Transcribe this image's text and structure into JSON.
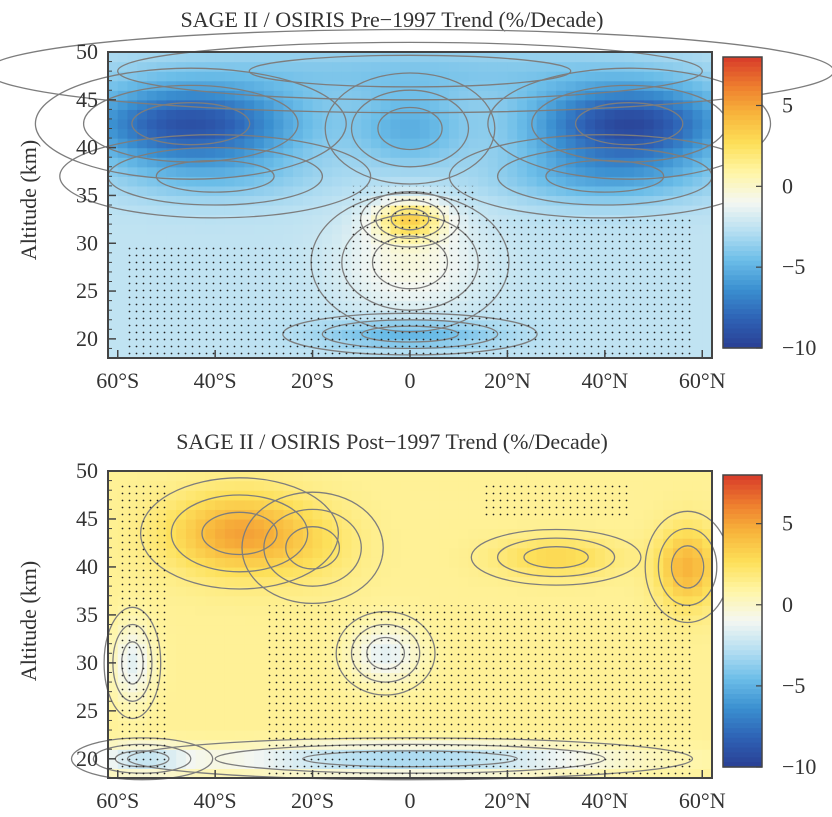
{
  "colors": {
    "scale": [
      "#2a3f94",
      "#2e62b5",
      "#3a8fd0",
      "#6bbde8",
      "#b6dff2",
      "#f4f7f2",
      "#fff6a8",
      "#fde05a",
      "#f8b73c",
      "#ee7d2e",
      "#d73a2a"
    ],
    "contour_line": "#7d7d7d",
    "stipple": "#222222"
  },
  "chart_data": [
    {
      "type": "heatmap",
      "title": "SAGE II / OSIRIS Pre−1997 Trend (%/Decade)",
      "xlabel": "",
      "ylabel": "Altitude (km)",
      "xlim": [
        -62,
        62
      ],
      "ylim": [
        18,
        50
      ],
      "x_ticks": [
        {
          "value": -60,
          "label": "60°S"
        },
        {
          "value": -40,
          "label": "40°S"
        },
        {
          "value": -20,
          "label": "20°S"
        },
        {
          "value": 0,
          "label": "0"
        },
        {
          "value": 20,
          "label": "20°N"
        },
        {
          "value": 40,
          "label": "40°N"
        },
        {
          "value": 60,
          "label": "60°N"
        }
      ],
      "y_ticks": [
        {
          "value": 20,
          "label": "20"
        },
        {
          "value": 25,
          "label": "25"
        },
        {
          "value": 30,
          "label": "30"
        },
        {
          "value": 35,
          "label": "35"
        },
        {
          "value": 40,
          "label": "40"
        },
        {
          "value": 45,
          "label": "45"
        },
        {
          "value": 50,
          "label": "50"
        }
      ],
      "colorbar": {
        "range": [
          -10,
          8
        ],
        "ticks": [
          {
            "value": 5,
            "label": "5"
          },
          {
            "value": 0,
            "label": "0"
          },
          {
            "value": -5,
            "label": "−5"
          },
          {
            "value": -10,
            "label": "−10"
          }
        ]
      },
      "features": [
        {
          "lat": -45,
          "alt": 42.5,
          "value": -9,
          "wlat": 22,
          "walt": 4
        },
        {
          "lat": 45,
          "alt": 42.5,
          "value": -9.5,
          "wlat": 20,
          "walt": 4
        },
        {
          "lat": 0,
          "alt": 42,
          "value": -5,
          "wlat": 12,
          "walt": 4
        },
        {
          "lat": 0,
          "alt": 48,
          "value": -4,
          "wlat": 60,
          "walt": 3
        },
        {
          "lat": -40,
          "alt": 37,
          "value": -4,
          "wlat": 22,
          "walt": 3
        },
        {
          "lat": 40,
          "alt": 37,
          "value": -5,
          "wlat": 22,
          "walt": 3
        },
        {
          "lat": 0,
          "alt": 32.5,
          "value": 2.5,
          "wlat": 7,
          "walt": 2
        },
        {
          "lat": 0,
          "alt": 28,
          "value": -0.5,
          "wlat": 14,
          "walt": 5
        },
        {
          "lat": 0,
          "alt": 20.5,
          "value": -5,
          "wlat": 18,
          "walt": 1.5
        }
      ],
      "stipple_regions": [
        {
          "lat": [
            -12,
            14
          ],
          "alt": [
            18,
            36
          ]
        },
        {
          "lat": [
            14,
            58
          ],
          "alt": [
            18,
            33
          ]
        },
        {
          "lat": [
            -58,
            -12
          ],
          "alt": [
            18,
            30
          ]
        }
      ]
    },
    {
      "type": "heatmap",
      "title": "SAGE II / OSIRIS Post−1997 Trend (%/Decade)",
      "xlabel": "",
      "ylabel": "Altitude (km)",
      "xlim": [
        -62,
        62
      ],
      "ylim": [
        18,
        50
      ],
      "x_ticks": [
        {
          "value": -60,
          "label": "60°S"
        },
        {
          "value": -40,
          "label": "40°S"
        },
        {
          "value": -20,
          "label": "20°S"
        },
        {
          "value": 0,
          "label": "0"
        },
        {
          "value": 20,
          "label": "20°N"
        },
        {
          "value": 40,
          "label": "40°N"
        },
        {
          "value": 60,
          "label": "60°N"
        }
      ],
      "y_ticks": [
        {
          "value": 20,
          "label": "20"
        },
        {
          "value": 25,
          "label": "25"
        },
        {
          "value": 30,
          "label": "30"
        },
        {
          "value": 35,
          "label": "35"
        },
        {
          "value": 40,
          "label": "40"
        },
        {
          "value": 45,
          "label": "45"
        },
        {
          "value": 50,
          "label": "50"
        }
      ],
      "colorbar": {
        "range": [
          -10,
          8
        ],
        "ticks": [
          {
            "value": 5,
            "label": "5"
          },
          {
            "value": 0,
            "label": "0"
          },
          {
            "value": -5,
            "label": "−5"
          },
          {
            "value": -10,
            "label": "−10"
          }
        ]
      },
      "features": [
        {
          "lat": -35,
          "alt": 43.5,
          "value": 5,
          "wlat": 14,
          "walt": 4
        },
        {
          "lat": -20,
          "alt": 42,
          "value": 2,
          "wlat": 10,
          "walt": 4
        },
        {
          "lat": 30,
          "alt": 41,
          "value": 3,
          "wlat": 12,
          "walt": 2
        },
        {
          "lat": 57,
          "alt": 40,
          "value": 4.5,
          "wlat": 6,
          "walt": 4
        },
        {
          "lat": -57,
          "alt": 30,
          "value": -1.5,
          "wlat": 4,
          "walt": 4
        },
        {
          "lat": -5,
          "alt": 31,
          "value": -1.5,
          "wlat": 7,
          "walt": 3
        },
        {
          "lat": 0,
          "alt": 20,
          "value": -3.5,
          "wlat": 40,
          "walt": 1.5
        },
        {
          "lat": -55,
          "alt": 20,
          "value": -2,
          "wlat": 10,
          "walt": 1.5
        }
      ],
      "stipple_regions": [
        {
          "lat": [
            -30,
            58
          ],
          "alt": [
            18,
            36
          ]
        },
        {
          "lat": [
            -60,
            -50
          ],
          "alt": [
            18,
            49
          ]
        },
        {
          "lat": [
            15,
            45
          ],
          "alt": [
            45,
            49
          ]
        }
      ]
    }
  ]
}
